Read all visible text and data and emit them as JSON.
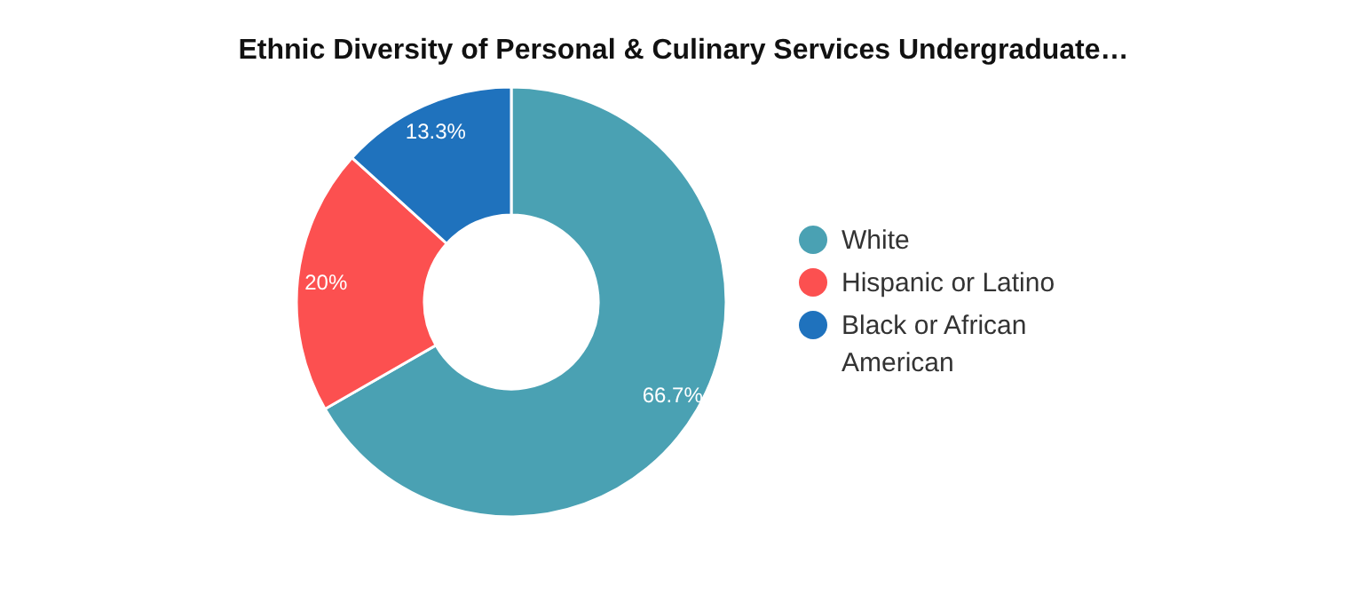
{
  "chart_data": {
    "type": "donut",
    "title": "Ethnic Diversity of Personal & Culinary Services Undergraduate…",
    "categories": [
      "White",
      "Hispanic or Latino",
      "Black or African American"
    ],
    "values": [
      66.7,
      20,
      13.3
    ],
    "colors": [
      "#4aa1b3",
      "#fc5050",
      "#1f72bd"
    ],
    "value_labels": [
      "66.7%",
      "20%",
      "13.3%"
    ],
    "legend": "right"
  }
}
